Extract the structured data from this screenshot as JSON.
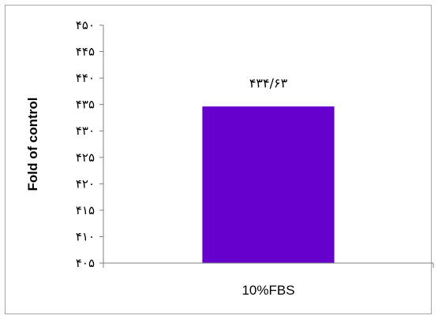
{
  "chart_data": {
    "type": "bar",
    "categories": [
      "10%FBS"
    ],
    "values": [
      434.63
    ],
    "value_labels": [
      "۴۳۴/۶۳"
    ],
    "ylabel": "Fold of control",
    "ylim": [
      405,
      450
    ],
    "yticks": [
      405,
      410,
      415,
      420,
      425,
      430,
      435,
      440,
      445,
      450
    ],
    "ytick_labels": [
      "۴۰۵",
      "۴۱۰",
      "۴۱۵",
      "۴۲۰",
      "۴۲۵",
      "۴۳۰",
      "۴۳۵",
      "۴۴۰",
      "۴۴۵",
      "۴۵۰"
    ],
    "grid": false,
    "legend": "none",
    "bar_color": "#6600cc"
  }
}
